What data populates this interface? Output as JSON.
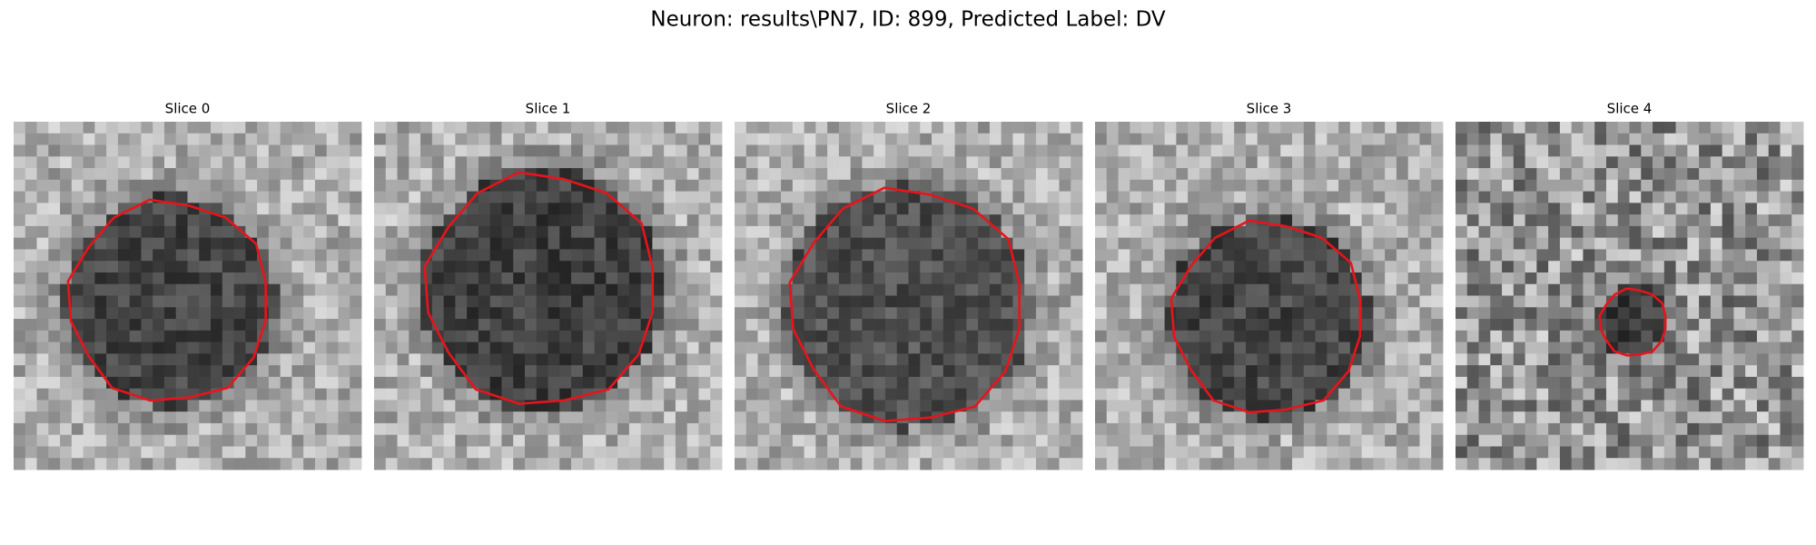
{
  "title": "Neuron: results\\PN7, ID: 899, Predicted Label: DV",
  "panels": [
    {
      "title": "Slice 0"
    },
    {
      "title": "Slice 1"
    },
    {
      "title": "Slice 2"
    },
    {
      "title": "Slice 3"
    },
    {
      "title": "Slice 4"
    }
  ]
}
